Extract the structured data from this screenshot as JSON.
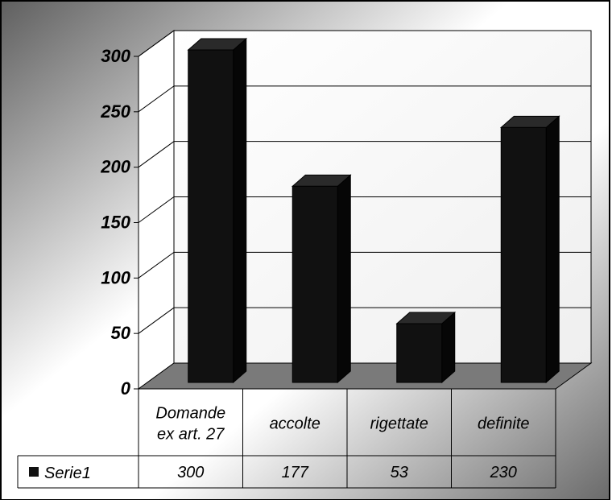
{
  "chart_data": {
    "type": "bar",
    "style": "3d-column",
    "categories": [
      [
        "Domande",
        "ex art. 27"
      ],
      [
        "accolte"
      ],
      [
        "rigettate"
      ],
      [
        "definite"
      ]
    ],
    "series": [
      {
        "name": "Serie1",
        "values": [
          300,
          177,
          53,
          230
        ],
        "color": "#111111"
      }
    ],
    "y_ticks": [
      "0",
      "50",
      "100",
      "150",
      "200",
      "250",
      "300"
    ],
    "ylim": [
      0,
      300
    ],
    "grid": true,
    "legend": "in-data-table",
    "data_table": true,
    "title": "",
    "xlabel": "",
    "ylabel": ""
  },
  "colors": {
    "bar_front": "#111111",
    "bar_top": "#2a2a2a",
    "bar_side": "#060606",
    "floor": "#7a7a7a",
    "background_light": "#ffffff",
    "background_dark": "#5f5f5f"
  }
}
